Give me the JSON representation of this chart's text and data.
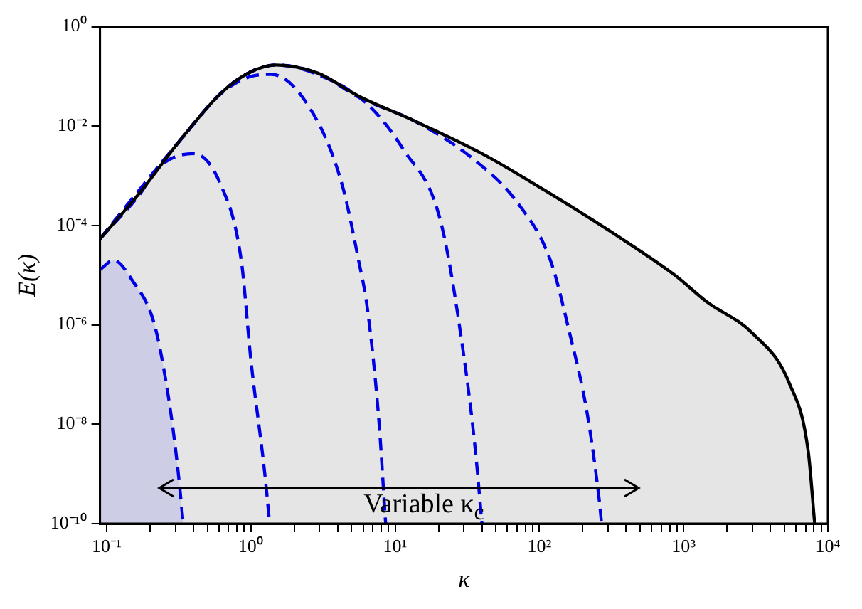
{
  "chart_data": {
    "type": "line",
    "xlabel": "κ",
    "ylabel": "E(κ)",
    "log": "xy",
    "grid": false,
    "marker": "none",
    "xlim": [
      0.09,
      10000
    ],
    "xticks": [
      {
        "value": 0.1,
        "label": "10⁻¹"
      },
      {
        "value": 0.2,
        "label": null
      },
      {
        "value": 0.3,
        "label": null
      },
      {
        "value": 0.4,
        "label": null
      },
      {
        "value": 0.5,
        "label": null
      },
      {
        "value": 0.6,
        "label": null
      },
      {
        "value": 0.7,
        "label": null
      },
      {
        "value": 0.8,
        "label": null
      },
      {
        "value": 0.9,
        "label": null
      },
      {
        "value": 1,
        "label": "10⁰"
      },
      {
        "value": 2,
        "label": null
      },
      {
        "value": 3,
        "label": null
      },
      {
        "value": 4,
        "label": null
      },
      {
        "value": 5,
        "label": null
      },
      {
        "value": 6,
        "label": null
      },
      {
        "value": 7,
        "label": null
      },
      {
        "value": 8,
        "label": null
      },
      {
        "value": 9,
        "label": null
      },
      {
        "value": 10,
        "label": "10¹"
      },
      {
        "value": 20,
        "label": null
      },
      {
        "value": 30,
        "label": null
      },
      {
        "value": 40,
        "label": null
      },
      {
        "value": 50,
        "label": null
      },
      {
        "value": 60,
        "label": null
      },
      {
        "value": 70,
        "label": null
      },
      {
        "value": 80,
        "label": null
      },
      {
        "value": 90,
        "label": null
      },
      {
        "value": 100,
        "label": "10²"
      },
      {
        "value": 200,
        "label": null
      },
      {
        "value": 300,
        "label": null
      },
      {
        "value": 400,
        "label": null
      },
      {
        "value": 500,
        "label": null
      },
      {
        "value": 600,
        "label": null
      },
      {
        "value": 700,
        "label": null
      },
      {
        "value": 800,
        "label": null
      },
      {
        "value": 900,
        "label": null
      },
      {
        "value": 1000,
        "label": "10³"
      },
      {
        "value": 2000,
        "label": null
      },
      {
        "value": 3000,
        "label": null
      },
      {
        "value": 4000,
        "label": null
      },
      {
        "value": 5000,
        "label": null
      },
      {
        "value": 6000,
        "label": null
      },
      {
        "value": 7000,
        "label": null
      },
      {
        "value": 8000,
        "label": null
      },
      {
        "value": 9000,
        "label": null
      },
      {
        "value": 10000,
        "label": "10⁴"
      }
    ],
    "ylim": [
      1e-10,
      1
    ],
    "yticks": [
      {
        "value": 1e-10,
        "label": "10⁻¹⁰"
      },
      {
        "value": 1e-08,
        "label": "10⁻⁸"
      },
      {
        "value": 1e-06,
        "label": "10⁻⁶"
      },
      {
        "value": 0.0001,
        "label": "10⁻⁴"
      },
      {
        "value": 0.01,
        "label": "10⁻²"
      },
      {
        "value": 1,
        "label": "10⁰"
      }
    ],
    "annotations": [
      "Variable κ$_{c}$"
    ],
    "series": [
      {
        "type": "area",
        "color": "#000000",
        "line_style": "solid",
        "x": [
          0.09,
          0.167,
          0.322,
          0.62,
          0.96,
          1.49,
          2.9,
          5.6,
          13.4,
          40,
          120,
          420,
          870,
          1450,
          3000,
          5400,
          7300,
          8100
        ],
        "values": [
          5.4e-05,
          0.00043,
          0.0051,
          0.046,
          0.117,
          0.17,
          0.117,
          0.04,
          0.013,
          0.0028,
          0.00043,
          4.3e-05,
          1e-05,
          2.9e-06,
          6.8e-07,
          6.7e-08,
          2.9e-09,
          1e-10
        ]
      },
      {
        "type": "area",
        "color": "#0000ff",
        "line_style": "dashed",
        "x": [
          0.09,
          0.112,
          0.15,
          0.215,
          0.268,
          0.309,
          0.34
        ],
        "values": [
          1.3e-05,
          2e-05,
          8e-06,
          1e-06,
          3.6e-08,
          1.6e-09,
          1e-10
        ]
      },
      {
        "color": "#0000ff",
        "line_style": "dashed",
        "x": [
          0.09,
          0.167,
          0.23,
          0.4,
          0.62,
          0.86,
          1.0,
          1.25,
          1.35
        ],
        "values": [
          5.4e-05,
          0.0004,
          0.0015,
          0.0028,
          0.00065,
          1.9e-05,
          2e-07,
          1e-09,
          1e-10
        ]
      },
      {
        "color": "#0000ff",
        "line_style": "dashed",
        "x": [
          0.09,
          0.322,
          0.62,
          1.0,
          1.39,
          2.7,
          4.3,
          5.6,
          6.4,
          7.7,
          8.6
        ],
        "values": [
          5.4e-05,
          0.0051,
          0.045,
          0.1,
          0.11,
          0.018,
          0.00065,
          1.9e-05,
          2.3e-06,
          1.3e-08,
          1e-10
        ]
      },
      {
        "color": "#0000ff",
        "line_style": "dashed",
        "x": [
          0.09,
          0.322,
          0.62,
          0.96,
          1.49,
          2.9,
          6.4,
          11.4,
          20.7,
          30,
          36,
          40
        ],
        "values": [
          5.4e-05,
          0.0051,
          0.046,
          0.117,
          0.17,
          0.11,
          0.028,
          0.0034,
          0.00012,
          2.3e-07,
          3e-09,
          1e-10
        ]
      },
      {
        "color": "#0000ff",
        "line_style": "dashed",
        "x": [
          0.09,
          0.322,
          0.62,
          0.96,
          1.49,
          2.9,
          5.6,
          13.4,
          34,
          71,
          120,
          160,
          215,
          260,
          270
        ],
        "values": [
          5.4e-05,
          0.0051,
          0.046,
          0.117,
          0.17,
          0.117,
          0.038,
          0.013,
          0.0023,
          0.00028,
          1.9e-05,
          8e-07,
          1.6e-08,
          3e-10,
          1e-10
        ]
      }
    ]
  }
}
